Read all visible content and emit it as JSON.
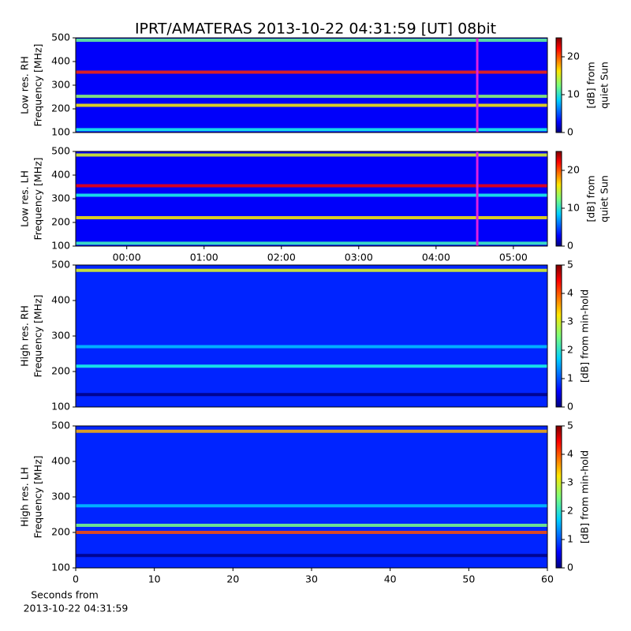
{
  "chart_data": [
    {
      "type": "heatmap",
      "title": "IPRT/AMATERAS 2013-10-22 04:31:59 [UT]   08bit",
      "ylabel": [
        "Low res. RH",
        "Frequency [MHz]"
      ],
      "xlim": [
        -0.66,
        5.44
      ],
      "ylim": [
        100,
        500
      ],
      "yticks": [
        100,
        200,
        300,
        400,
        500
      ],
      "background_level": 3,
      "bands": [
        {
          "frequency": 112,
          "level": 10
        },
        {
          "frequency": 215,
          "level": 16
        },
        {
          "frequency": 253,
          "level": 13
        },
        {
          "frequency": 355,
          "level": 21
        },
        {
          "frequency": 490,
          "level": 12
        }
      ],
      "marker": {
        "x": 4.533,
        "color": "#e020e0"
      },
      "colorbar": {
        "label": [
          "[dB] from",
          "quiet Sun"
        ],
        "lim": [
          0,
          25
        ],
        "ticks": [
          0,
          10,
          20
        ]
      }
    },
    {
      "type": "heatmap",
      "ylabel": [
        "Low res. LH",
        "Frequency [MHz]"
      ],
      "xlim": [
        -0.66,
        5.44
      ],
      "ylim": [
        100,
        500
      ],
      "yticks": [
        100,
        200,
        300,
        400,
        500
      ],
      "xticks": [
        {
          "value": 0,
          "label": "00:00"
        },
        {
          "value": 1,
          "label": "01:00"
        },
        {
          "value": 2,
          "label": "02:00"
        },
        {
          "value": 3,
          "label": "03:00"
        },
        {
          "value": 4,
          "label": "04:00"
        },
        {
          "value": 5,
          "label": "05:00"
        }
      ],
      "background_level": 3,
      "bands": [
        {
          "frequency": 112,
          "level": 11
        },
        {
          "frequency": 220,
          "level": 16
        },
        {
          "frequency": 315,
          "level": 10
        },
        {
          "frequency": 355,
          "level": 22
        },
        {
          "frequency": 485,
          "level": 15
        }
      ],
      "marker": {
        "x": 4.533,
        "color": "#e020e0"
      },
      "colorbar": {
        "label": [
          "[dB] from",
          "quiet Sun"
        ],
        "lim": [
          0,
          25
        ],
        "ticks": [
          0,
          10,
          20
        ]
      }
    },
    {
      "type": "heatmap",
      "ylabel": [
        "High res. RH",
        "Frequency [MHz]"
      ],
      "xlim": [
        0,
        60
      ],
      "ylim": [
        100,
        500
      ],
      "yticks": [
        100,
        200,
        300,
        400,
        500
      ],
      "background_level": 0.8,
      "bands": [
        {
          "frequency": 135,
          "level": 0
        },
        {
          "frequency": 215,
          "level": 2
        },
        {
          "frequency": 270,
          "level": 1.6
        },
        {
          "frequency": 485,
          "level": 3
        }
      ],
      "colorbar": {
        "label": [
          "[dB] from min-hold"
        ],
        "lim": [
          0,
          5
        ],
        "ticks": [
          0,
          1,
          2,
          3,
          4,
          5
        ]
      }
    },
    {
      "type": "heatmap",
      "ylabel": [
        "High res. LH",
        "Frequency [MHz]"
      ],
      "xlim": [
        0,
        60
      ],
      "ylim": [
        100,
        500
      ],
      "yticks": [
        100,
        200,
        300,
        400,
        500
      ],
      "xticks": [
        0,
        10,
        20,
        30,
        40,
        50,
        60
      ],
      "xlabel": [
        "Seconds from",
        "2013-10-22 04:31:59"
      ],
      "background_level": 0.8,
      "bands": [
        {
          "frequency": 135,
          "level": 0
        },
        {
          "frequency": 200,
          "level": 4
        },
        {
          "frequency": 220,
          "level": 2.5
        },
        {
          "frequency": 275,
          "level": 1.6
        },
        {
          "frequency": 485,
          "level": 3.5
        }
      ],
      "colorbar": {
        "label": [
          "[dB] from min-hold"
        ],
        "lim": [
          0,
          5
        ],
        "ticks": [
          0,
          1,
          2,
          3,
          4,
          5
        ]
      }
    }
  ]
}
